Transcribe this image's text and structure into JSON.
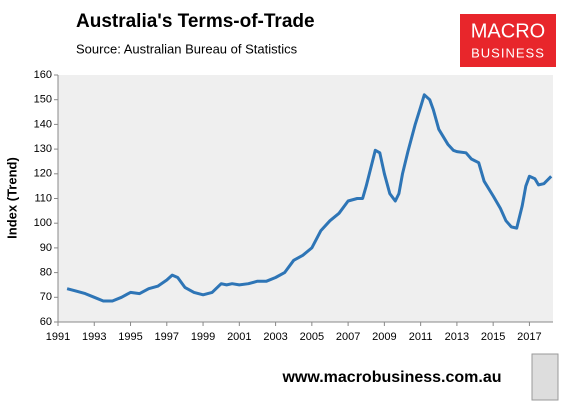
{
  "chart_data": {
    "type": "line",
    "title": "Australia's Terms-of-Trade",
    "subtitle": "Source: Australian Bureau of Statistics",
    "y_label": "Index (Trend)",
    "logo": [
      "MACRO",
      "BUSINESS"
    ],
    "footer": "www.macrobusiness.com.au",
    "color": "#2e75b6",
    "grid": false,
    "x": [
      1991.5,
      1992,
      1992.5,
      1993,
      1993.5,
      1994,
      1994.5,
      1995,
      1995.5,
      1996,
      1996.5,
      1997,
      1997.3,
      1997.6,
      1998,
      1998.5,
      1999,
      1999.5,
      2000,
      2000.3,
      2000.6,
      2001,
      2001.5,
      2002,
      2002.5,
      2003,
      2003.5,
      2004,
      2004.5,
      2005,
      2005.5,
      2006,
      2006.5,
      2007,
      2007.5,
      2007.8,
      2008,
      2008.5,
      2008.75,
      2009,
      2009.3,
      2009.6,
      2009.8,
      2010,
      2010.3,
      2010.7,
      2011,
      2011.2,
      2011.5,
      2011.7,
      2012,
      2012.5,
      2012.8,
      2013,
      2013.5,
      2013.8,
      2014.2,
      2014.5,
      2015,
      2015.4,
      2015.7,
      2016,
      2016.3,
      2016.6,
      2016.8,
      2017,
      2017.3,
      2017.5,
      2017.8,
      2018.2
    ],
    "values": [
      73.5,
      72.5,
      71.5,
      70,
      68.5,
      68.5,
      70,
      72,
      71.5,
      73.5,
      74.5,
      77,
      79,
      78,
      74,
      72,
      71,
      72,
      75.5,
      75,
      75.5,
      75,
      75.5,
      76.5,
      76.5,
      78,
      80,
      85,
      87,
      90,
      97,
      101,
      104,
      109,
      110,
      110,
      115,
      129.5,
      128.5,
      120,
      112,
      109,
      112,
      120,
      129,
      140,
      147,
      152,
      150,
      146,
      138,
      132,
      129.5,
      129,
      128.5,
      126,
      124.5,
      117,
      111,
      106,
      101,
      98.5,
      98,
      107,
      115,
      119,
      118,
      115.5,
      116,
      119
    ],
    "xlim": [
      1991,
      2018.3
    ],
    "xticks": [
      1991,
      1993,
      1995,
      1997,
      1999,
      2001,
      2003,
      2005,
      2007,
      2009,
      2011,
      2013,
      2015,
      2017
    ],
    "ylim": [
      60,
      160
    ],
    "yticks": [
      60,
      70,
      80,
      90,
      100,
      110,
      120,
      130,
      140,
      150,
      160
    ]
  }
}
